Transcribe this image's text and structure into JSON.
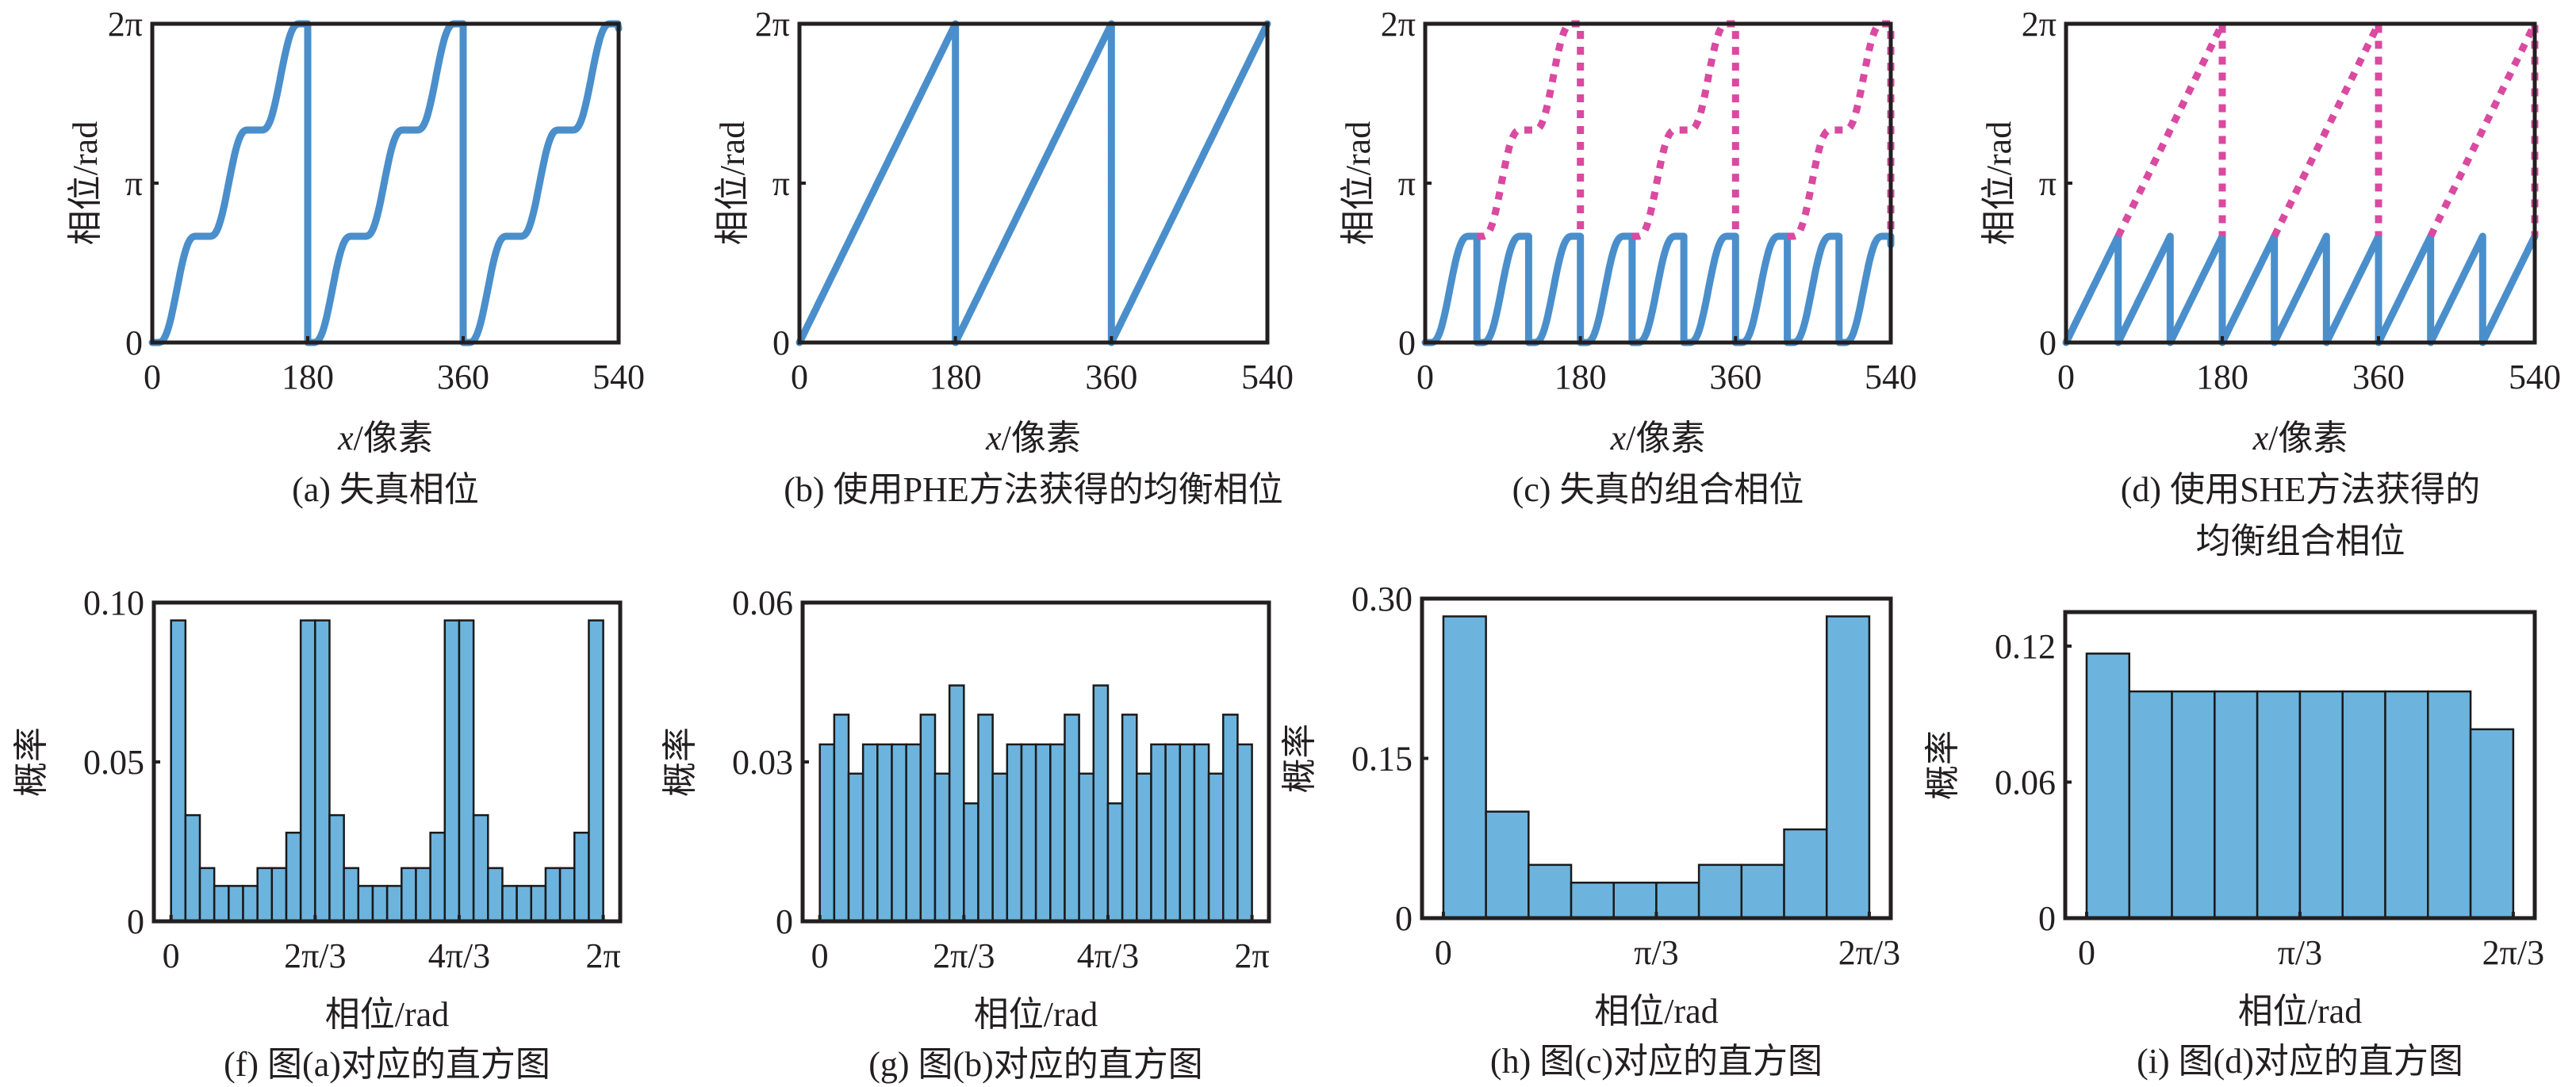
{
  "figure": {
    "colors": {
      "phase_line": "#4a8fcb",
      "unwrapped_line": "#d94aa0",
      "bar_fill": "#6cb4de",
      "axes": "#231f20"
    }
  },
  "chart_data": [
    {
      "id": "a",
      "type": "line",
      "caption": "(a) 失真相位",
      "xlabel_italic": "x",
      "xlabel_rest": "/像素",
      "ylabel": "相位/rad",
      "xlim": [
        0,
        540
      ],
      "ylim": [
        0,
        6.2832
      ],
      "xticks": [
        0,
        180,
        360,
        540
      ],
      "xtick_labels": [
        "0",
        "180",
        "360",
        "540"
      ],
      "yticks": [
        0,
        3.1416,
        6.2832
      ],
      "ytick_labels": [
        "0",
        "π",
        "2π"
      ],
      "series": [
        {
          "name": "distorted-phase",
          "style": "solid",
          "kind": "staircase",
          "period": 180,
          "steps": 3,
          "max": 6.2832,
          "x_range": [
            0,
            540
          ]
        }
      ]
    },
    {
      "id": "b",
      "type": "line",
      "caption": "(b) 使用PHE方法获得的均衡相位",
      "xlabel_italic": "x",
      "xlabel_rest": "/像素",
      "ylabel": "相位/rad",
      "xlim": [
        0,
        540
      ],
      "ylim": [
        0,
        6.2832
      ],
      "xticks": [
        0,
        180,
        360,
        540
      ],
      "xtick_labels": [
        "0",
        "180",
        "360",
        "540"
      ],
      "yticks": [
        0,
        3.1416,
        6.2832
      ],
      "ytick_labels": [
        "0",
        "π",
        "2π"
      ],
      "series": [
        {
          "name": "equalized-phase",
          "style": "solid",
          "kind": "sawtooth",
          "period": 180,
          "max": 6.2832,
          "x_range": [
            0,
            540
          ]
        }
      ]
    },
    {
      "id": "c",
      "type": "line",
      "caption": "(c) 失真的组合相位",
      "xlabel_italic": "x",
      "xlabel_rest": "/像素",
      "ylabel": "相位/rad",
      "xlim": [
        0,
        540
      ],
      "ylim": [
        0,
        6.2832
      ],
      "xticks": [
        0,
        180,
        360,
        540
      ],
      "xtick_labels": [
        "0",
        "180",
        "360",
        "540"
      ],
      "yticks": [
        0,
        3.1416,
        6.2832
      ],
      "ytick_labels": [
        "0",
        "π",
        "2π"
      ],
      "series": [
        {
          "name": "wrapped-combined-phase",
          "style": "solid",
          "kind": "wrapped-staircase",
          "period": 60,
          "max": 2.0944,
          "x_range": [
            0,
            540
          ]
        },
        {
          "name": "unwrapped-distorted-phase",
          "style": "dotted",
          "kind": "staircase-tail",
          "period": 180,
          "steps": 3,
          "max": 6.2832,
          "start_offset": 60,
          "x_range": [
            60,
            540
          ]
        }
      ]
    },
    {
      "id": "d",
      "type": "line",
      "caption": "(d) 使用SHE方法获得的",
      "caption_line2": "均衡组合相位",
      "xlabel_italic": "x",
      "xlabel_rest": "/像素",
      "ylabel": "相位/rad",
      "xlim": [
        0,
        540
      ],
      "ylim": [
        0,
        6.2832
      ],
      "xticks": [
        0,
        180,
        360,
        540
      ],
      "xtick_labels": [
        "0",
        "180",
        "360",
        "540"
      ],
      "yticks": [
        0,
        3.1416,
        6.2832
      ],
      "ytick_labels": [
        "0",
        "π",
        "2π"
      ],
      "series": [
        {
          "name": "wrapped-equalized-phase",
          "style": "solid",
          "kind": "sawtooth",
          "period": 60,
          "max": 2.0944,
          "x_range": [
            0,
            540
          ]
        },
        {
          "name": "unwrapped-equalized-phase",
          "style": "dotted",
          "kind": "sawtooth-tail",
          "period": 180,
          "max": 6.2832,
          "start_offset": 60,
          "x_range": [
            60,
            540
          ]
        }
      ]
    },
    {
      "id": "f",
      "type": "bar",
      "caption": "(f) 图(a)对应的直方图",
      "xlabel": "相位/rad",
      "ylabel": "概率",
      "xlim": [
        -0.25,
        6.53
      ],
      "ylim": [
        0,
        0.1
      ],
      "bin_range": [
        0,
        6.2832
      ],
      "bins": 30,
      "xticks": [
        0,
        2.0944,
        4.1888,
        6.2832
      ],
      "xtick_labels": [
        "0",
        "2π/3",
        "4π/3",
        "2π"
      ],
      "yticks": [
        0,
        0.05,
        0.1
      ],
      "ytick_labels": [
        "0",
        "0.05",
        "0.10"
      ],
      "values": [
        0.0944,
        0.0333,
        0.0167,
        0.0111,
        0.0111,
        0.0111,
        0.0167,
        0.0167,
        0.0278,
        0.0944,
        0.0944,
        0.0333,
        0.0167,
        0.0111,
        0.0111,
        0.0111,
        0.0167,
        0.0167,
        0.0278,
        0.0944,
        0.0944,
        0.0333,
        0.0167,
        0.0111,
        0.0111,
        0.0111,
        0.0167,
        0.0167,
        0.0278,
        0.0944
      ]
    },
    {
      "id": "g",
      "type": "bar",
      "caption": "(g) 图(b)对应的直方图",
      "xlabel": "相位/rad",
      "ylabel": "概率",
      "xlim": [
        -0.25,
        6.53
      ],
      "ylim": [
        0,
        0.06
      ],
      "bin_range": [
        0,
        6.2832
      ],
      "bins": 30,
      "xticks": [
        0,
        2.0944,
        4.1888,
        6.2832
      ],
      "xtick_labels": [
        "0",
        "2π/3",
        "4π/3",
        "2π"
      ],
      "yticks": [
        0,
        0.03,
        0.06
      ],
      "ytick_labels": [
        "0",
        "0.03",
        "0.06"
      ],
      "values": [
        0.0333,
        0.0389,
        0.0278,
        0.0333,
        0.0333,
        0.0333,
        0.0333,
        0.0389,
        0.0278,
        0.0444,
        0.0222,
        0.0389,
        0.0278,
        0.0333,
        0.0333,
        0.0333,
        0.0333,
        0.0389,
        0.0278,
        0.0444,
        0.0222,
        0.0389,
        0.0278,
        0.0333,
        0.0333,
        0.0333,
        0.0333,
        0.0278,
        0.0389,
        0.0333
      ]
    },
    {
      "id": "h",
      "type": "bar",
      "caption": "(h) 图(c)对应的直方图",
      "xlabel": "相位/rad",
      "ylabel": "概率",
      "xlim": [
        -0.105,
        2.2
      ],
      "ylim": [
        0,
        0.3
      ],
      "bin_range": [
        0,
        2.0944
      ],
      "bins": 10,
      "xticks": [
        0,
        1.0472,
        2.0944
      ],
      "xtick_labels": [
        "0",
        "π/3",
        "2π/3"
      ],
      "yticks": [
        0,
        0.15,
        0.3
      ],
      "ytick_labels": [
        "0",
        "0.15",
        "0.30"
      ],
      "values": [
        0.2833,
        0.1,
        0.05,
        0.0333,
        0.0333,
        0.0333,
        0.05,
        0.05,
        0.0833,
        0.2833
      ]
    },
    {
      "id": "i",
      "type": "bar",
      "caption": "(i) 图(d)对应的直方图",
      "xlabel": "相位/rad",
      "ylabel": "概率",
      "xlim": [
        -0.105,
        2.2
      ],
      "ylim": [
        0,
        0.135
      ],
      "bin_range": [
        0,
        2.0944
      ],
      "bins": 10,
      "xticks": [
        0,
        1.0472,
        2.0944
      ],
      "xtick_labels": [
        "0",
        "π/3",
        "2π/3"
      ],
      "yticks": [
        0,
        0.06,
        0.12
      ],
      "ytick_labels": [
        "0",
        "0.06",
        "0.12"
      ],
      "values": [
        0.1167,
        0.1,
        0.1,
        0.1,
        0.1,
        0.1,
        0.1,
        0.1,
        0.1,
        0.0833
      ]
    }
  ]
}
